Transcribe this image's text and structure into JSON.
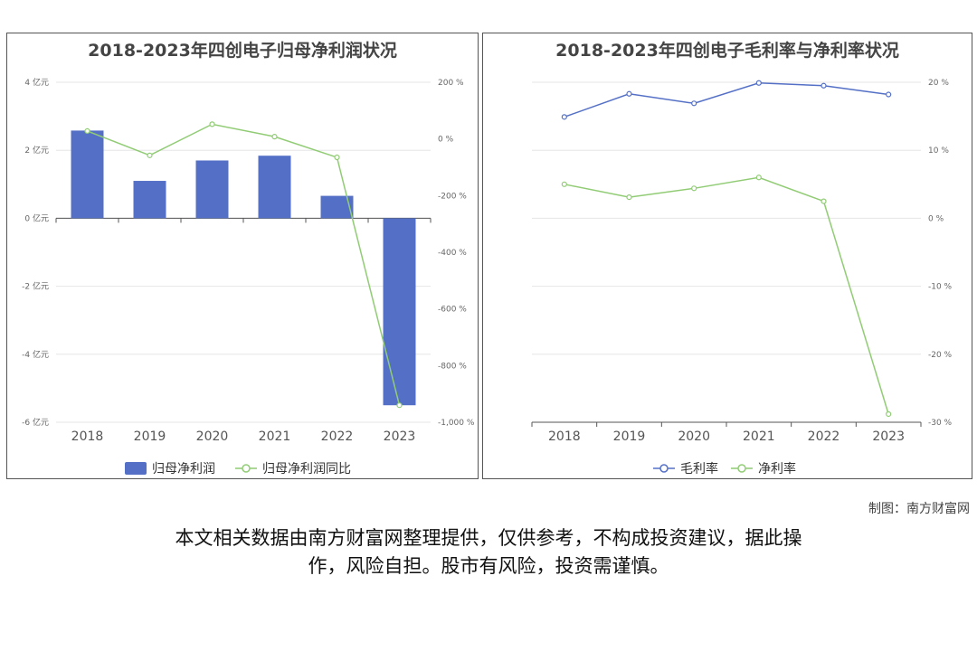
{
  "chart_data": [
    {
      "type": "bar",
      "title": "2018-2023年四创电子归母净利润状况",
      "categories": [
        "2018",
        "2019",
        "2020",
        "2021",
        "2022",
        "2023"
      ],
      "series": [
        {
          "name": "归母净利润",
          "type": "bar",
          "axis": "left",
          "color": "#5470c6",
          "values": [
            2.58,
            1.1,
            1.7,
            1.84,
            0.66,
            -5.5
          ]
        },
        {
          "name": "归母净利润同比",
          "type": "line",
          "axis": "right",
          "color": "#91cc75",
          "values": [
            28,
            -58,
            52,
            8,
            -65,
            -940
          ]
        }
      ],
      "y_left": {
        "ticks": [
          "4 亿元",
          "2 亿元",
          "0 亿元",
          "-2 亿元",
          "-4 亿元",
          "-6 亿元"
        ],
        "range": [
          -6,
          4
        ]
      },
      "y_right": {
        "ticks": [
          "200 %",
          "0 %",
          "-200 %",
          "-400 %",
          "-600 %",
          "-800 %",
          "-1,000 %"
        ],
        "range": [
          -1000,
          200
        ]
      },
      "legend_position": "bottom"
    },
    {
      "type": "line",
      "title": "2018-2023年四创电子毛利率与净利率状况",
      "categories": [
        "2018",
        "2019",
        "2020",
        "2021",
        "2022",
        "2023"
      ],
      "series": [
        {
          "name": "毛利率",
          "color": "#5470c6",
          "values": [
            14.9,
            18.3,
            16.9,
            19.9,
            19.5,
            18.2
          ]
        },
        {
          "name": "净利率",
          "color": "#91cc75",
          "values": [
            5.0,
            3.1,
            4.4,
            6.0,
            2.5,
            -28.8
          ]
        }
      ],
      "y_right": {
        "ticks": [
          "20 %",
          "10 %",
          "0 %",
          "-10 %",
          "-20 %",
          "-30 %"
        ],
        "range": [
          -30,
          20
        ]
      },
      "legend_position": "bottom"
    }
  ],
  "credit": "制图：南方财富网",
  "disclaimer_line1": "本文相关数据由南方财富网整理提供，仅供参考，不构成投资建议，据此操",
  "disclaimer_line2": "作，风险自担。股市有风险，投资需谨慎。"
}
